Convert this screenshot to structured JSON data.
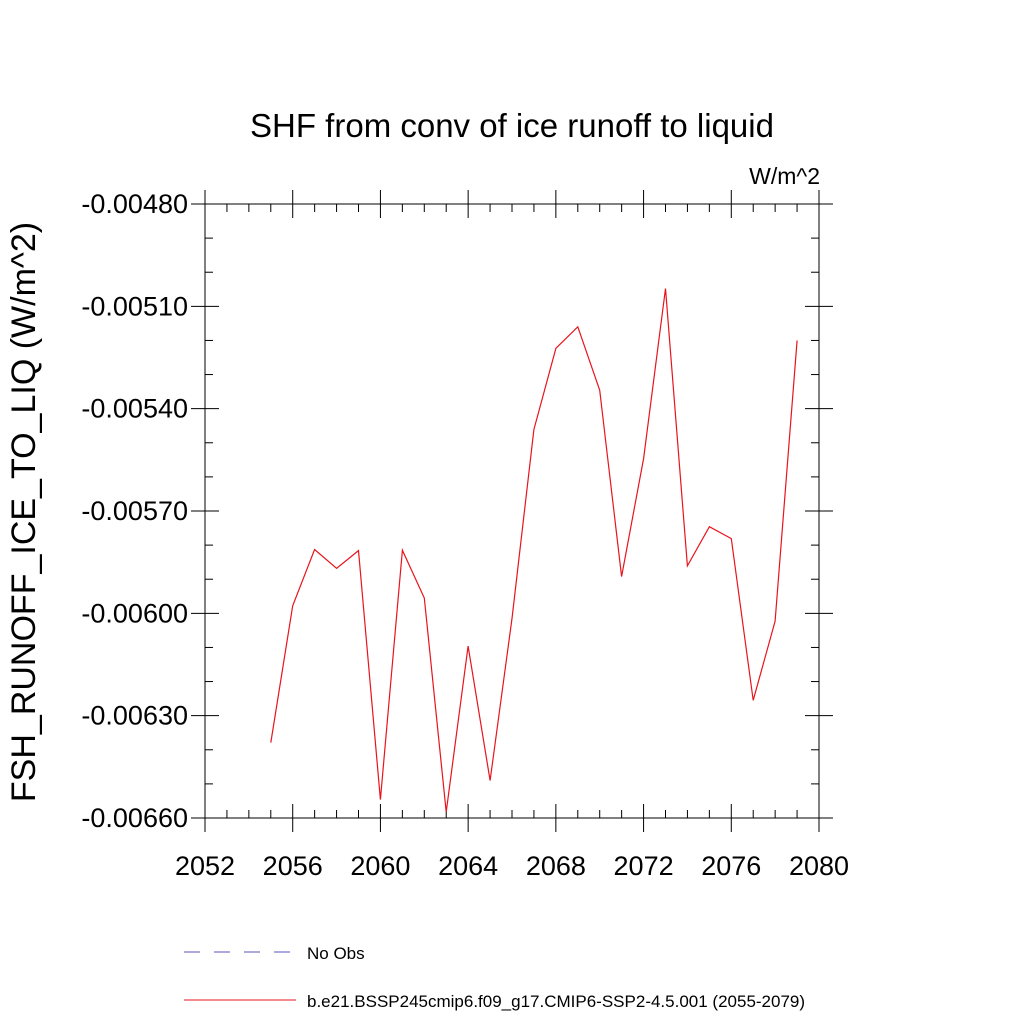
{
  "chart_data": {
    "type": "line",
    "title": "SHF from conv of ice runoff to liquid",
    "units_label": "W/m^2",
    "xlabel": "",
    "ylabel": "FSH_RUNOFF_ICE_TO_LIQ  (W/m^2)",
    "xlim": [
      2052,
      2080
    ],
    "ylim": [
      -0.0066,
      -0.0048
    ],
    "x_ticks": [
      2052,
      2056,
      2060,
      2064,
      2068,
      2072,
      2076,
      2080
    ],
    "x_tick_labels": [
      "2052",
      "2056",
      "2060",
      "2064",
      "2068",
      "2072",
      "2076",
      "2080"
    ],
    "y_ticks": [
      -0.0048,
      -0.0051,
      -0.0054,
      -0.0057,
      -0.006,
      -0.0063,
      -0.0066
    ],
    "y_tick_labels": [
      "-0.00480",
      "-0.00510",
      "-0.00540",
      "-0.00570",
      "-0.00600",
      "-0.00630",
      "-0.00660"
    ],
    "x_minor_step": 1,
    "y_minor_step": 0.0001,
    "series": [
      {
        "name": "b.e21.BSSP245cmip6.f09_g17.CMIP6-SSP2-4.5.001 (2055-2079)",
        "color": "#e8141c",
        "dash": "solid",
        "x": [
          2055,
          2056,
          2057,
          2058,
          2059,
          2060,
          2061,
          2062,
          2063,
          2064,
          2065,
          2066,
          2067,
          2068,
          2069,
          2070,
          2071,
          2072,
          2073,
          2074,
          2075,
          2076,
          2077,
          2078,
          2079
        ],
        "y": [
          -0.006379,
          -0.005978,
          -0.005813,
          -0.005868,
          -0.005816,
          -0.006546,
          -0.005815,
          -0.005955,
          -0.006582,
          -0.006096,
          -0.00649,
          -0.006015,
          -0.005461,
          -0.005223,
          -0.00516,
          -0.005346,
          -0.005892,
          -0.005546,
          -0.005048,
          -0.005861,
          -0.005746,
          -0.005781,
          -0.006255,
          -0.006023,
          -0.0052
        ]
      }
    ],
    "legend": [
      {
        "label": "No Obs",
        "color": "#5a55b8",
        "dash": "dashed"
      },
      {
        "label": "b.e21.BSSP245cmip6.f09_g17.CMIP6-SSP2-4.5.001 (2055-2079)",
        "color": "#e8141c",
        "dash": "solid"
      }
    ],
    "legend_position": "bottom",
    "grid": false
  }
}
